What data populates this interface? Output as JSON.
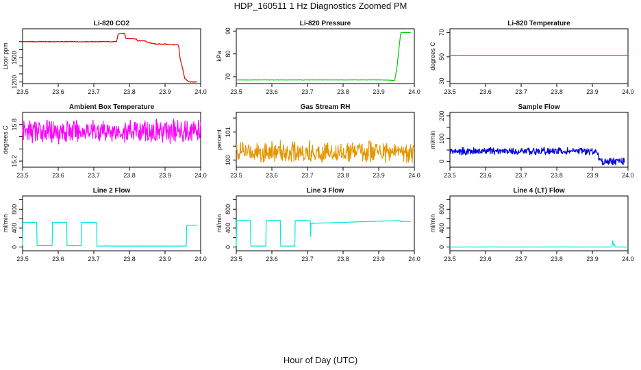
{
  "title": "HDP_160511  1 Hz Diagnostics Zoomed PM",
  "xlabel": "Hour of Day (UTC)",
  "colors": {
    "red": "#dd0000",
    "green": "#00cc00",
    "magenta": "#ff00ff",
    "orange": "#e69500",
    "blue": "#0000dd",
    "cyan": "#00e5e5",
    "axis": "#000000"
  },
  "chart_data": [
    {
      "type": "line",
      "title": "Li-820 CO2",
      "ylabel": "Licor ppm",
      "color": "red",
      "xlim": [
        23.5,
        24.0
      ],
      "ylim": [
        1180,
        1860
      ],
      "xticks": [
        "23.5",
        "23.6",
        "23.7",
        "23.8",
        "23.9",
        "24.0"
      ],
      "yticks": [
        1200,
        1500
      ],
      "yminor": [
        1300,
        1400,
        1600,
        1700
      ],
      "series": [
        {
          "name": "CO2",
          "x": [
            23.5,
            23.764,
            23.768,
            23.772,
            23.787,
            23.79,
            23.82,
            23.822,
            23.845,
            23.85,
            23.875,
            23.9,
            23.93,
            23.938,
            23.942,
            23.95,
            23.955,
            23.965,
            23.972,
            23.99
          ],
          "y": [
            1700,
            1700,
            1790,
            1800,
            1800,
            1740,
            1735,
            1710,
            1710,
            1690,
            1670,
            1670,
            1660,
            1655,
            1500,
            1350,
            1250,
            1205,
            1200,
            1200
          ]
        }
      ],
      "noise": 6
    },
    {
      "type": "line",
      "title": "Li-820 Pressure",
      "ylabel": "kPa",
      "color": "green",
      "xlim": [
        23.5,
        24.0
      ],
      "ylim": [
        67,
        91
      ],
      "xticks": [
        "23.5",
        "23.6",
        "23.7",
        "23.8",
        "23.9",
        "24.0"
      ],
      "yticks": [
        70,
        80,
        90
      ],
      "yminor": [],
      "series": [
        {
          "name": "Pressure",
          "x": [
            23.5,
            23.905,
            23.93,
            23.945,
            23.952,
            23.958,
            23.962,
            23.97,
            23.99
          ],
          "y": [
            68.6,
            68.6,
            68.5,
            68.3,
            75,
            84,
            89.2,
            89.4,
            89.4
          ]
        }
      ],
      "noise": 0.1
    },
    {
      "type": "line",
      "title": "Li-820 Temperature",
      "ylabel": "degrees C",
      "color": "magenta",
      "xlim": [
        23.5,
        24.0
      ],
      "ylim": [
        28,
        73
      ],
      "xticks": [
        "23.5",
        "23.6",
        "23.7",
        "23.8",
        "23.9",
        "24.0"
      ],
      "yticks": [
        30,
        50,
        70
      ],
      "yminor": [],
      "series": [
        {
          "name": "Temperature",
          "x": [
            23.5,
            24.0
          ],
          "y": [
            51,
            51
          ]
        }
      ],
      "noise": 0
    },
    {
      "type": "line",
      "title": "Ambient Box Temperature",
      "ylabel": "degrees C",
      "color": "magenta",
      "xlim": [
        23.5,
        24.0
      ],
      "ylim": [
        15.1,
        16.0
      ],
      "xticks": [
        "23.5",
        "23.6",
        "23.7",
        "23.8",
        "23.9",
        "24.0"
      ],
      "yticks": [
        15.2,
        15.8
      ],
      "yminor": [
        15.4,
        15.6
      ],
      "series": [
        {
          "name": "Box Temp",
          "x": [
            23.5,
            24.0
          ],
          "y": [
            15.69,
            15.69
          ]
        }
      ],
      "noise": 0.22
    },
    {
      "type": "line",
      "title": "Gas Stream RH",
      "ylabel": "percent",
      "color": "orange",
      "xlim": [
        23.5,
        24.0
      ],
      "ylim": [
        99.75,
        101.7
      ],
      "xticks": [
        "23.5",
        "23.6",
        "23.7",
        "23.8",
        "23.9",
        "24.0"
      ],
      "yticks": [
        100.0,
        101.0
      ],
      "yminor": [
        100.5,
        101.5
      ],
      "series": [
        {
          "name": "RH",
          "x": [
            23.5,
            24.0
          ],
          "y": [
            100.3,
            100.3
          ]
        }
      ],
      "noise": 0.42
    },
    {
      "type": "line",
      "title": "Sample Flow",
      "ylabel": "ml/min",
      "color": "blue",
      "xlim": [
        23.5,
        24.0
      ],
      "ylim": [
        -25,
        215
      ],
      "xticks": [
        "23.5",
        "23.6",
        "23.7",
        "23.8",
        "23.9",
        "24.0"
      ],
      "yticks": [
        0,
        100,
        200
      ],
      "yminor": [
        50,
        150
      ],
      "series": [
        {
          "name": "Sample Flow",
          "x": [
            23.5,
            23.912,
            23.92,
            23.93,
            23.99
          ],
          "y": [
            45,
            45,
            10,
            0,
            0
          ]
        }
      ],
      "noise": 18
    },
    {
      "type": "line",
      "title": "Line 2 Flow",
      "ylabel": "ml/min",
      "color": "cyan",
      "xlim": [
        23.5,
        24.0
      ],
      "ylim": [
        -80,
        1080
      ],
      "xticks": [
        "23.5",
        "23.6",
        "23.7",
        "23.8",
        "23.9",
        "24.0"
      ],
      "yticks": [
        0,
        400,
        800
      ],
      "yminor": [
        200,
        600,
        1000
      ],
      "series": [
        {
          "name": "Line 2",
          "x": [
            23.5,
            23.5,
            23.54,
            23.54,
            23.583,
            23.583,
            23.624,
            23.624,
            23.665,
            23.665,
            23.708,
            23.708,
            23.96,
            23.96,
            23.99
          ],
          "y": [
            30,
            520,
            520,
            30,
            30,
            520,
            520,
            30,
            30,
            520,
            520,
            20,
            20,
            460,
            460
          ]
        }
      ],
      "noise": 4
    },
    {
      "type": "line",
      "title": "Line 3 Flow",
      "ylabel": "ml/min",
      "color": "cyan",
      "xlim": [
        23.5,
        24.0
      ],
      "ylim": [
        -80,
        1080
      ],
      "xticks": [
        "23.5",
        "23.6",
        "23.7",
        "23.8",
        "23.9",
        "24.0"
      ],
      "yticks": [
        0,
        400,
        800
      ],
      "yminor": [
        200,
        600,
        1000
      ],
      "series": [
        {
          "name": "Line 3",
          "x": [
            23.5,
            23.5,
            23.54,
            23.54,
            23.583,
            23.583,
            23.624,
            23.624,
            23.665,
            23.665,
            23.708,
            23.708,
            23.71,
            23.96,
            23.96,
            23.99
          ],
          "y": [
            20,
            560,
            560,
            20,
            20,
            560,
            560,
            20,
            20,
            560,
            560,
            20,
            500,
            560,
            540,
            540
          ]
        }
      ],
      "noise": 4
    },
    {
      "type": "line",
      "title": "Line 4 (LT) Flow",
      "ylabel": "ml/min",
      "color": "cyan",
      "xlim": [
        23.5,
        24.0
      ],
      "ylim": [
        -80,
        1080
      ],
      "xticks": [
        "23.5",
        "23.6",
        "23.7",
        "23.8",
        "23.9",
        "24.0"
      ],
      "yticks": [
        0,
        400,
        800
      ],
      "yminor": [
        200,
        600,
        1000
      ],
      "series": [
        {
          "name": "Line 4 (LT)",
          "x": [
            23.5,
            23.955,
            23.957,
            23.96,
            23.962,
            23.964,
            24.0
          ],
          "y": [
            0,
            0,
            140,
            20,
            60,
            0,
            0
          ]
        }
      ],
      "noise": 3
    }
  ]
}
